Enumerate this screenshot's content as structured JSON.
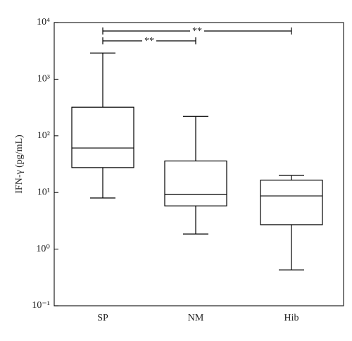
{
  "chart_data": {
    "type": "box",
    "ylabel": "IFN-γ (pg/mL)",
    "categories": [
      "SP",
      "NM",
      "Hib"
    ],
    "boxes": [
      {
        "min": 8,
        "q1": 27.5,
        "median": 61,
        "q3": 320,
        "max": 2900
      },
      {
        "min": 1.85,
        "q1": 5.8,
        "median": 9.2,
        "q3": 36,
        "max": 220
      },
      {
        "min": 0.43,
        "q1": 2.7,
        "median": 8.7,
        "q3": 16.5,
        "max": 20
      }
    ],
    "color": "#000000",
    "log_scale": true,
    "ylim": [
      0.1,
      10000
    ],
    "yticks": [
      {
        "value": 0.1,
        "label": "10⁻¹"
      },
      {
        "value": 1,
        "label": "10⁰"
      },
      {
        "value": 10,
        "label": "10¹"
      },
      {
        "value": 100,
        "label": "10²"
      },
      {
        "value": 1000,
        "label": "10³"
      },
      {
        "value": 10000,
        "label": "10⁴"
      }
    ],
    "annotations": [
      {
        "text": "**",
        "from": "SP",
        "to": "Hib"
      },
      {
        "text": "**",
        "from": "SP",
        "to": "NM"
      }
    ]
  }
}
